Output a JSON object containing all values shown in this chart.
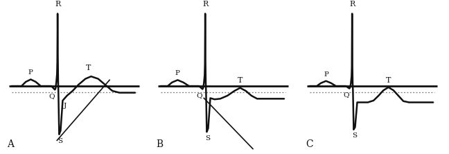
{
  "bg_color": "#ffffff",
  "line_color": "#111111",
  "dashed_color": "#777777",
  "baseline_lw": 2.0,
  "ecg_lw": 1.8,
  "diag_lw": 1.2,
  "panels": [
    "A",
    "B",
    "C"
  ],
  "figsize": [
    6.48,
    2.22
  ],
  "dpi": 100
}
